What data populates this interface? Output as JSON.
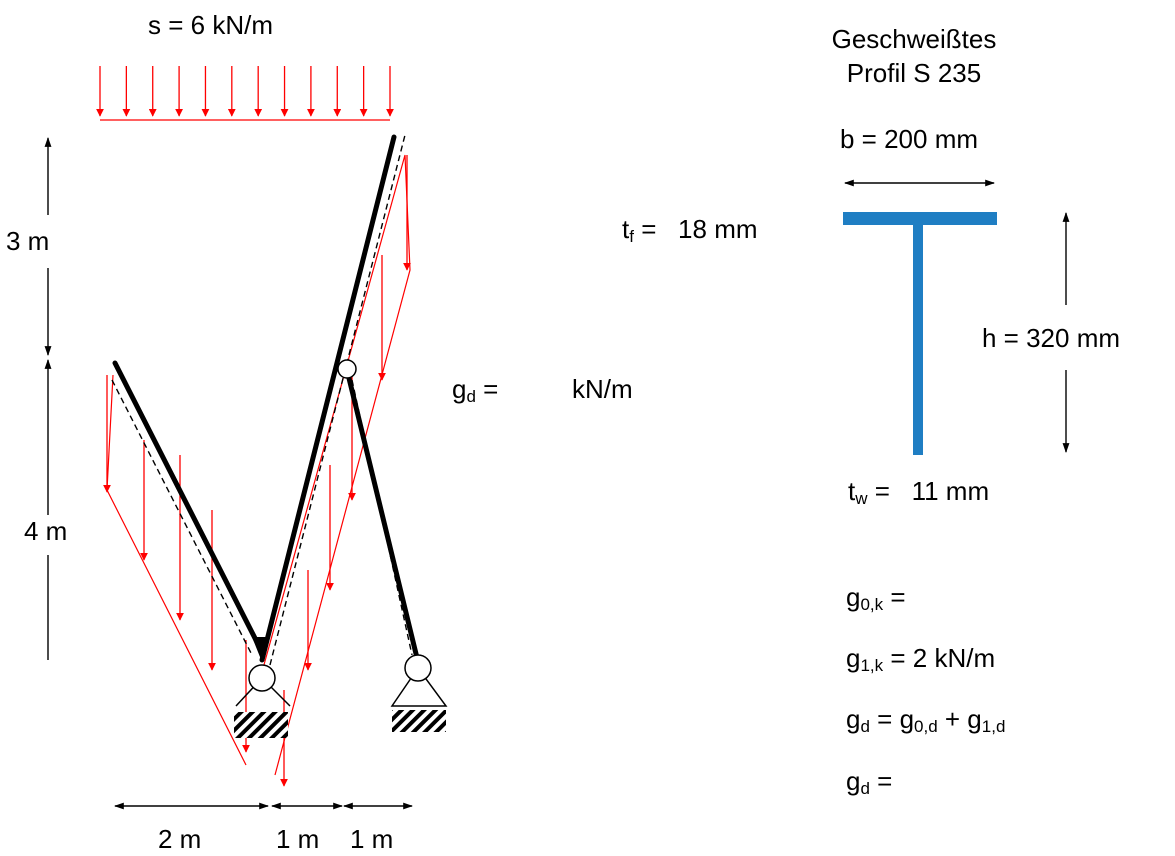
{
  "load": {
    "s_label": "s = 6 kN/m"
  },
  "dimensions": {
    "vertical_upper": "3 m",
    "vertical_lower": "4 m",
    "horizontal_left": "2 m",
    "horizontal_mid": "1 m",
    "horizontal_right": "1 m"
  },
  "gd_answer": {
    "lhs": "g",
    "sub": "d",
    "eq": " =",
    "unit": "kN/m"
  },
  "profile": {
    "title_line1": "Geschweißtes",
    "title_line2": "Profil S 235",
    "b": "b = 200 mm",
    "h": "h = 320 mm",
    "tf": {
      "sym": "t",
      "sub": "f",
      "rest": " =   18 mm"
    },
    "tw": {
      "sym": "t",
      "sub": "w",
      "rest": " =   11 mm"
    }
  },
  "equations": {
    "g0k": {
      "sym": "g",
      "sub": "0,k",
      "rest": " ="
    },
    "g1k": {
      "sym": "g",
      "sub": "1,k",
      "rest": " = 2 kN/m"
    },
    "gd_sum": {
      "sym": "g",
      "sub": "d",
      "rest1": " = g",
      "sub1": "0,d",
      "rest2": " + g",
      "sub2": "1,d"
    },
    "gd_final": {
      "sym": "g",
      "sub": "d",
      "rest": " ="
    }
  },
  "colors": {
    "load": "#ff0000",
    "structure": "#000000",
    "profile": "#1f7ec3"
  }
}
